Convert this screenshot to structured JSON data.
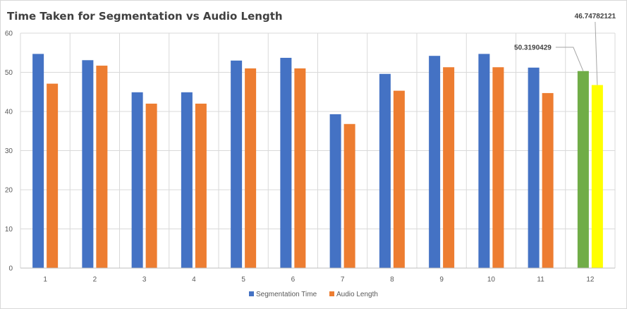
{
  "chart_data": {
    "type": "bar",
    "title": "Time Taken for Segmentation vs Audio Length",
    "xlabel": "",
    "ylabel": "",
    "categories": [
      "1",
      "2",
      "3",
      "4",
      "5",
      "6",
      "7",
      "8",
      "9",
      "10",
      "11",
      "12"
    ],
    "ylim": [
      0,
      60
    ],
    "yticks": [
      0,
      10,
      20,
      30,
      40,
      50,
      60
    ],
    "grid": true,
    "legend_position": "bottom",
    "series": [
      {
        "name": "Segmentation Time",
        "color": "#4472c4",
        "values": [
          54.7,
          53.1,
          44.9,
          44.9,
          53.0,
          53.7,
          39.3,
          49.6,
          54.2,
          54.7,
          51.2,
          50.3190429
        ],
        "point_colors": {
          "11": "#70ad47"
        }
      },
      {
        "name": "Audio Length",
        "color": "#ed7d31",
        "values": [
          47.1,
          51.7,
          42.0,
          42.0,
          51.0,
          51.0,
          36.8,
          45.3,
          51.3,
          51.3,
          44.7,
          46.74782121
        ],
        "point_colors": {
          "11": "#ffff00"
        }
      }
    ],
    "annotations": [
      {
        "series": 0,
        "index": 11,
        "text": "50.3190429"
      },
      {
        "series": 1,
        "index": 11,
        "text": "46.74782121"
      }
    ]
  }
}
